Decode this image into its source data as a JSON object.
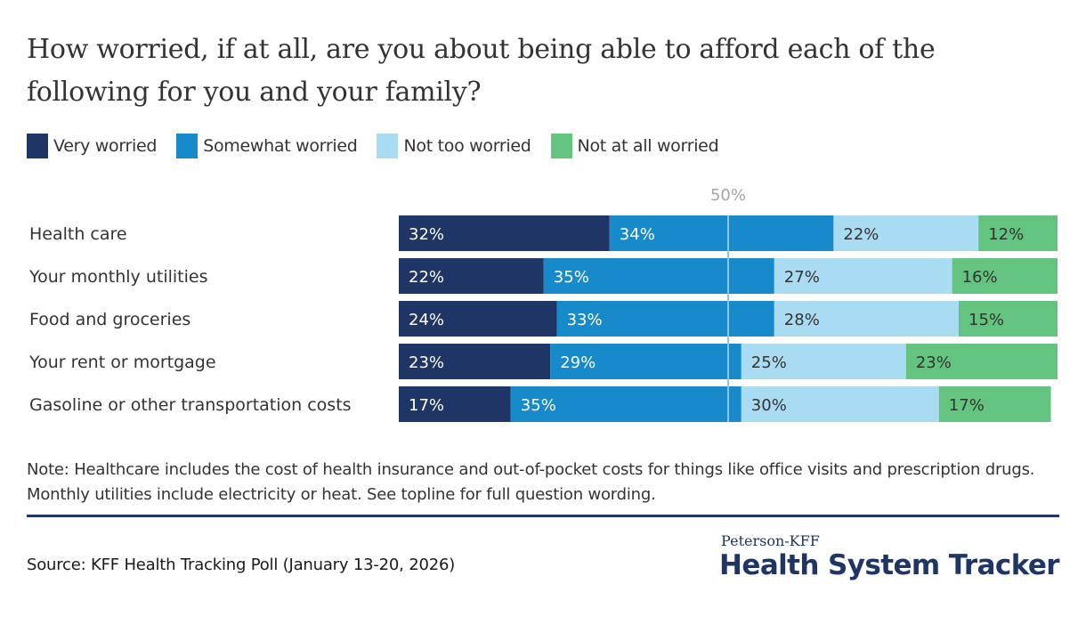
{
  "title": "How worried, if at all, are you about being able to afford each of the following for you and your family?",
  "colors": {
    "very_worried": "#1f3566",
    "somewhat_worried": "#168acb",
    "not_too_worried": "#a9dbf3",
    "not_at_all_worried": "#62c47e",
    "reference_line": "#8fc6e8",
    "text_dark": "#333333",
    "text_light": "#ffffff"
  },
  "chart_data": {
    "type": "bar",
    "orientation": "horizontal",
    "stacked": true,
    "title": "How worried, if at all, are you about being able to afford each of the following for you and your family?",
    "xlabel": "",
    "ylabel": "",
    "xlim": [
      0,
      100
    ],
    "grid": false,
    "legend_position": "top-left",
    "reference_line": {
      "value": 50,
      "label": "50%"
    },
    "categories": [
      "Health care",
      "Your monthly utilities",
      "Food and groceries",
      "Your rent or mortgage",
      "Gasoline or other transportation costs"
    ],
    "series": [
      {
        "name": "Very worried",
        "values": [
          32,
          22,
          24,
          23,
          17
        ]
      },
      {
        "name": "Somewhat worried",
        "values": [
          34,
          35,
          33,
          29,
          35
        ]
      },
      {
        "name": "Not too worried",
        "values": [
          22,
          27,
          28,
          25,
          30
        ]
      },
      {
        "name": "Not at all worried",
        "values": [
          12,
          16,
          15,
          23,
          17
        ]
      }
    ],
    "value_suffix": "%"
  },
  "legend": [
    {
      "label": "Very worried",
      "color_key": "very_worried"
    },
    {
      "label": "Somewhat worried",
      "color_key": "somewhat_worried"
    },
    {
      "label": "Not too worried",
      "color_key": "not_too_worried"
    },
    {
      "label": "Not at all worried",
      "color_key": "not_at_all_worried"
    }
  ],
  "note": "Note: Healthcare includes the cost of health insurance and out-of-pocket costs for things like office visits and prescription drugs. Monthly utilities include electricity or heat. See topline for full question wording.",
  "source": "Source: KFF Health Tracking Poll (January 13-20, 2026)",
  "logo": {
    "top": "Peterson-KFF",
    "main": "Health System Tracker"
  }
}
